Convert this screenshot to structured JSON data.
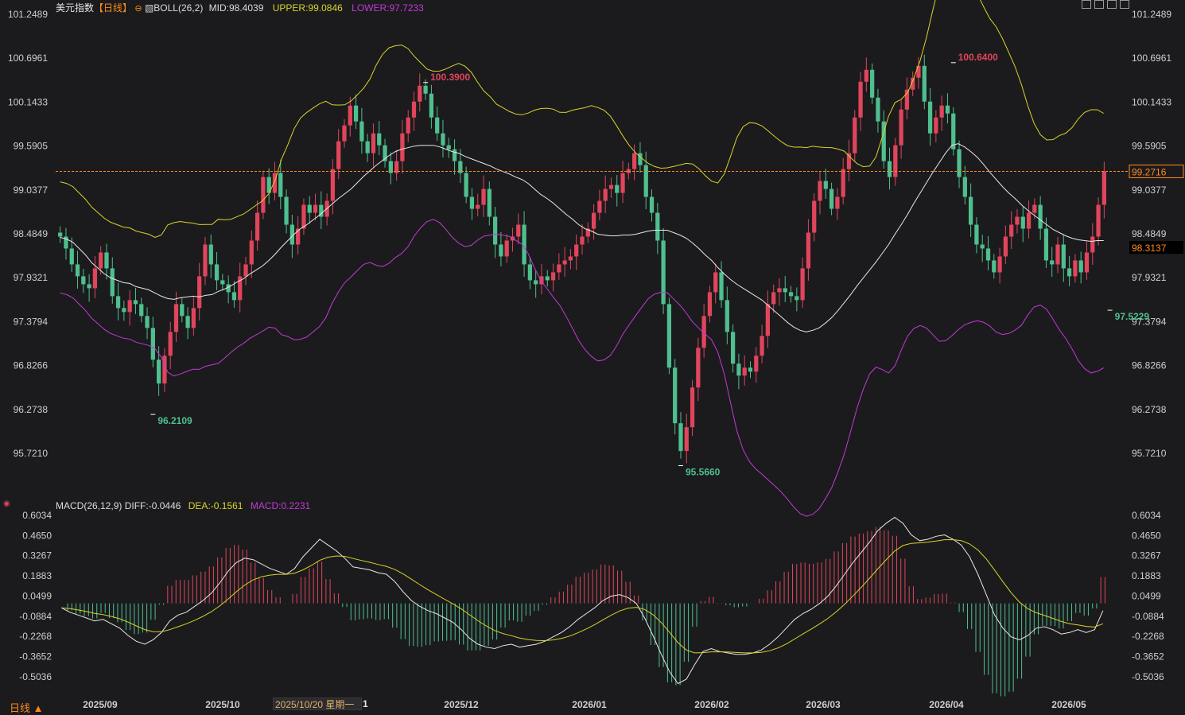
{
  "main": {
    "title": "美元指数",
    "period_tag": "【日线】",
    "indicator": "BOLL(26,2)",
    "mid": "MID:98.4039",
    "upper": "UPPER:99.0846",
    "lower": "LOWER:97.7233"
  },
  "macd": {
    "indicator": "MACD(26,12,9)",
    "diff": "DIFF:-0.0446",
    "dea": "DEA:-0.1561",
    "macd": "MACD:0.2231"
  },
  "footer": {
    "period_button": "日线 ▲",
    "cursor_date": "2025/10/20 星期一",
    "cursor_index": "1"
  },
  "colors": {
    "up": "#e0455c",
    "down": "#4fbf8f",
    "mid": "#e8e8e8",
    "upper": "#d9d32a",
    "lower": "#c23ad6",
    "dea": "#d9d32a",
    "diff": "#e8e8e8",
    "last_price": "#ff8a1c",
    "bg": "#1b1b1d"
  },
  "chart_data": [
    {
      "type": "candlestick",
      "ylim": [
        95.5,
        101.3
      ],
      "y_ticks": [
        "101.2489",
        "100.6961",
        "100.1433",
        "99.5905",
        "99.0377",
        "98.4849",
        "97.9321",
        "97.3794",
        "96.8266",
        "96.2738",
        "95.7210"
      ],
      "x_ticks": [
        "2025/09",
        "2025/10",
        "2025/12",
        "2026/01",
        "2026/02",
        "2026/03",
        "2026/04",
        "2026/05"
      ],
      "last_price": "99.2716",
      "cursor_value": "98.3137",
      "annotations": {
        "low_1": "96.2109",
        "high_1": "100.3900",
        "low_2": "95.5660",
        "high_2": "100.6400",
        "low_3": "97.5229"
      },
      "series_close": [
        98.45,
        98.3,
        98.1,
        97.95,
        97.85,
        97.8,
        98.05,
        98.25,
        98.05,
        97.7,
        97.55,
        97.5,
        97.65,
        97.6,
        97.45,
        97.3,
        96.9,
        96.6,
        96.95,
        97.25,
        97.6,
        97.45,
        97.3,
        97.55,
        97.95,
        98.35,
        98.1,
        97.9,
        97.85,
        97.75,
        97.65,
        97.95,
        98.1,
        98.4,
        98.75,
        99.2,
        99.0,
        99.25,
        98.95,
        98.6,
        98.35,
        98.55,
        98.85,
        98.75,
        98.85,
        98.7,
        98.9,
        99.3,
        99.65,
        99.85,
        100.1,
        99.9,
        99.65,
        99.5,
        99.75,
        99.6,
        99.4,
        99.25,
        99.4,
        99.75,
        99.95,
        100.15,
        100.35,
        100.25,
        99.95,
        99.75,
        99.6,
        99.55,
        99.4,
        99.25,
        98.95,
        98.8,
        98.85,
        99.05,
        98.7,
        98.35,
        98.2,
        98.4,
        98.45,
        98.6,
        98.1,
        97.9,
        97.85,
        97.95,
        97.9,
        98.0,
        98.1,
        98.15,
        98.2,
        98.35,
        98.45,
        98.55,
        98.75,
        98.9,
        99.05,
        99.1,
        99.0,
        99.25,
        99.3,
        99.5,
        99.35,
        98.95,
        98.75,
        98.4,
        97.6,
        96.8,
        96.1,
        95.75,
        96.05,
        96.55,
        97.05,
        97.45,
        97.75,
        98.0,
        97.65,
        97.25,
        96.85,
        96.7,
        96.8,
        96.75,
        96.95,
        97.2,
        97.6,
        97.75,
        97.8,
        97.75,
        97.7,
        97.65,
        98.05,
        98.5,
        98.9,
        99.15,
        99.05,
        98.8,
        98.95,
        99.3,
        99.5,
        99.95,
        100.4,
        100.55,
        100.2,
        99.9,
        99.4,
        99.2,
        99.6,
        100.05,
        100.3,
        100.45,
        100.6,
        100.15,
        99.75,
        99.95,
        100.1,
        100.0,
        99.55,
        99.2,
        98.95,
        98.6,
        98.35,
        98.3,
        98.15,
        98.0,
        98.2,
        98.45,
        98.6,
        98.7,
        98.55,
        98.75,
        98.85,
        98.55,
        98.15,
        98.1,
        98.35,
        98.05,
        97.95,
        98.15,
        98.0,
        98.25,
        98.45,
        98.85,
        99.27
      ],
      "boll_mid": [
        98.44,
        98.42,
        98.38,
        98.3,
        98.22,
        98.12,
        98.05,
        97.98,
        97.93,
        97.9,
        97.87,
        97.86,
        97.82,
        97.8,
        97.78,
        97.74,
        97.7,
        97.67,
        97.66,
        97.68,
        97.69,
        97.7,
        97.69,
        97.71,
        97.72,
        97.76,
        97.79,
        97.83,
        97.88,
        97.92,
        97.98,
        98.03,
        98.08,
        98.15,
        98.23,
        98.32,
        98.4,
        98.48,
        98.55,
        98.6,
        98.66,
        98.72,
        98.79,
        98.86,
        98.93,
        98.99,
        99.05,
        99.13,
        99.21,
        99.28,
        99.35,
        99.41,
        99.47,
        99.52,
        99.55,
        99.57,
        99.59,
        99.6,
        99.6,
        99.6,
        99.58,
        99.55,
        99.52,
        99.5,
        99.46,
        99.43,
        99.4,
        99.37,
        99.34,
        99.3,
        99.27,
        99.24,
        99.2,
        99.17,
        99.12,
        99.05,
        98.98,
        98.93,
        98.87,
        98.8,
        98.73,
        98.67,
        98.6,
        98.55,
        98.52,
        98.48,
        98.47,
        98.46,
        98.46,
        98.47,
        98.47,
        98.48,
        98.5,
        98.52,
        98.53,
        98.53,
        98.53,
        98.5,
        98.47,
        98.43,
        98.37,
        98.3,
        98.22,
        98.15,
        98.06,
        97.98,
        97.91,
        97.85,
        97.8,
        97.75,
        97.7,
        97.65,
        97.58,
        97.51,
        97.44,
        97.37,
        97.31,
        97.27,
        97.25,
        97.27,
        97.3,
        97.36,
        97.43,
        97.52,
        97.62,
        97.72,
        97.83,
        97.93,
        98.03,
        98.13,
        98.24,
        98.35,
        98.48,
        98.6,
        98.73,
        98.87,
        99.0,
        99.13,
        99.26,
        99.38,
        99.5,
        99.6,
        99.62,
        99.58,
        99.52,
        99.45,
        99.36,
        99.26,
        99.17,
        99.08,
        99.0,
        98.93,
        98.85,
        98.78,
        98.72,
        98.66,
        98.6,
        98.54,
        98.5,
        98.46,
        98.43,
        98.41,
        98.4,
        98.39,
        98.4,
        98.4
      ]
    },
    {
      "type": "macd",
      "ylim": [
        -0.65,
        0.65
      ],
      "y_ticks": [
        "0.6034",
        "0.4650",
        "0.3267",
        "0.1883",
        "0.0499",
        "-0.0884",
        "-0.2268",
        "-0.3652",
        "-0.5036"
      ],
      "diff": [
        -0.03,
        -0.06,
        -0.08,
        -0.1,
        -0.12,
        -0.11,
        -0.14,
        -0.17,
        -0.22,
        -0.26,
        -0.28,
        -0.25,
        -0.2,
        -0.12,
        -0.08,
        -0.06,
        -0.02,
        0.02,
        0.07,
        0.14,
        0.22,
        0.28,
        0.31,
        0.3,
        0.27,
        0.24,
        0.22,
        0.2,
        0.24,
        0.32,
        0.38,
        0.44,
        0.4,
        0.36,
        0.31,
        0.25,
        0.24,
        0.23,
        0.21,
        0.2,
        0.15,
        0.08,
        0.02,
        -0.02,
        -0.05,
        -0.07,
        -0.1,
        -0.13,
        -0.18,
        -0.24,
        -0.28,
        -0.3,
        -0.31,
        -0.29,
        -0.28,
        -0.3,
        -0.29,
        -0.28,
        -0.26,
        -0.23,
        -0.2,
        -0.16,
        -0.11,
        -0.07,
        -0.03,
        0.02,
        0.05,
        0.06,
        0.04,
        0.0,
        -0.1,
        -0.22,
        -0.35,
        -0.47,
        -0.55,
        -0.52,
        -0.42,
        -0.33,
        -0.31,
        -0.33,
        -0.34,
        -0.35,
        -0.35,
        -0.34,
        -0.32,
        -0.28,
        -0.23,
        -0.17,
        -0.11,
        -0.07,
        -0.04,
        0.0,
        0.05,
        0.12,
        0.2,
        0.28,
        0.35,
        0.42,
        0.5,
        0.55,
        0.59,
        0.55,
        0.47,
        0.43,
        0.44,
        0.46,
        0.47,
        0.44,
        0.4,
        0.32,
        0.2,
        0.06,
        -0.08,
        -0.17,
        -0.23,
        -0.25,
        -0.22,
        -0.17,
        -0.16,
        -0.18,
        -0.21,
        -0.2,
        -0.18,
        -0.2,
        -0.18,
        -0.05
      ]
    }
  ]
}
